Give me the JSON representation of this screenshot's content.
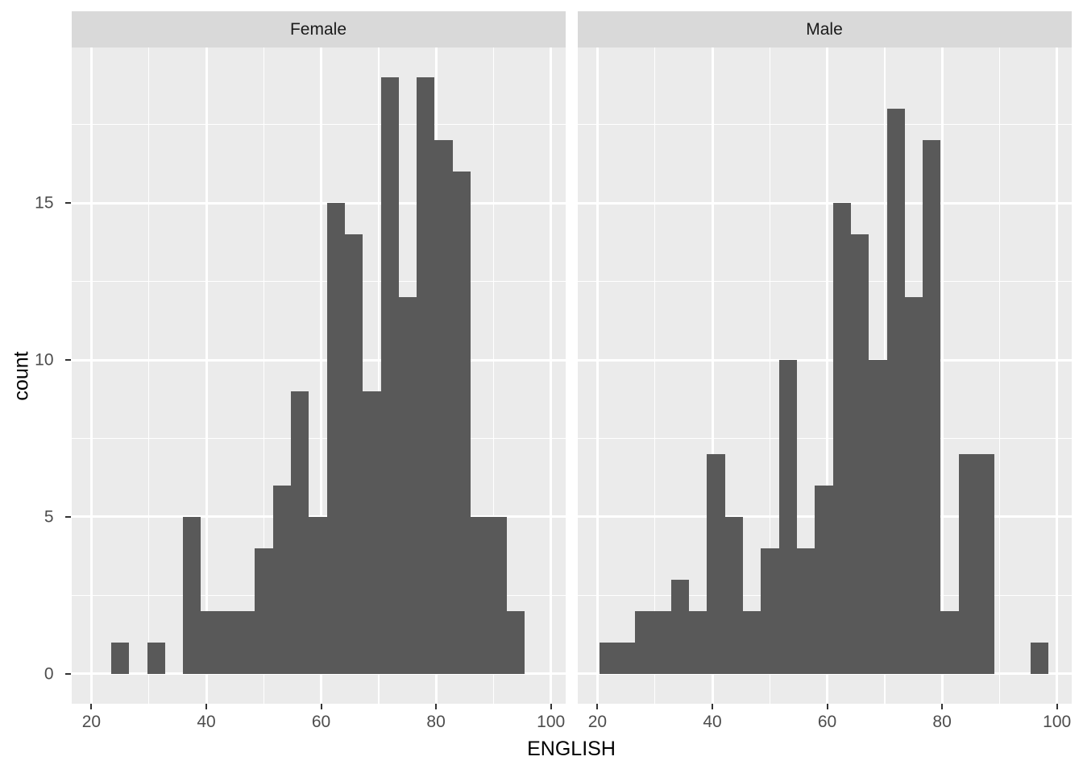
{
  "chart_data": {
    "type": "bar",
    "chart_kind": "faceted histogram, ggplot2 style, 2 facets side by side",
    "xlabel": "ENGLISH",
    "ylabel": "count",
    "x_ticks": [
      20,
      40,
      60,
      80,
      100
    ],
    "y_ticks": [
      0,
      5,
      10,
      15
    ],
    "x_minor_gridlines": [
      30,
      50,
      70,
      90
    ],
    "y_minor_gridlines": [
      2.5,
      7.5,
      12.5,
      17.5
    ],
    "x_domain": [
      16.5,
      102.5
    ],
    "y_domain": [
      -0.95,
      19.95
    ],
    "bins": {
      "start": 20.3,
      "width": 3.13,
      "n": 25
    },
    "facets": [
      {
        "label": "Female",
        "counts": [
          0,
          1,
          0,
          1,
          0,
          5,
          2,
          2,
          2,
          4,
          6,
          9,
          5,
          15,
          14,
          9,
          19,
          12,
          19,
          17,
          16,
          5,
          5,
          2,
          0
        ]
      },
      {
        "label": "Male",
        "counts": [
          1,
          1,
          2,
          2,
          3,
          2,
          7,
          5,
          2,
          4,
          10,
          4,
          6,
          15,
          14,
          10,
          18,
          12,
          17,
          2,
          7,
          7,
          0,
          0,
          1
        ]
      }
    ],
    "legend": "none",
    "grid": "on"
  },
  "style": {
    "bar_fill": "#595959",
    "panel_bg": "#EBEBEB",
    "strip_bg": "#D9D9D9",
    "gridline_color": "#FFFFFF",
    "tick_label_color": "#4D4D4D",
    "axis_title_color": "#000000",
    "strip_text_color": "#1A1A1A",
    "tick_mark_color": "#333333",
    "background": "#FFFFFF"
  }
}
